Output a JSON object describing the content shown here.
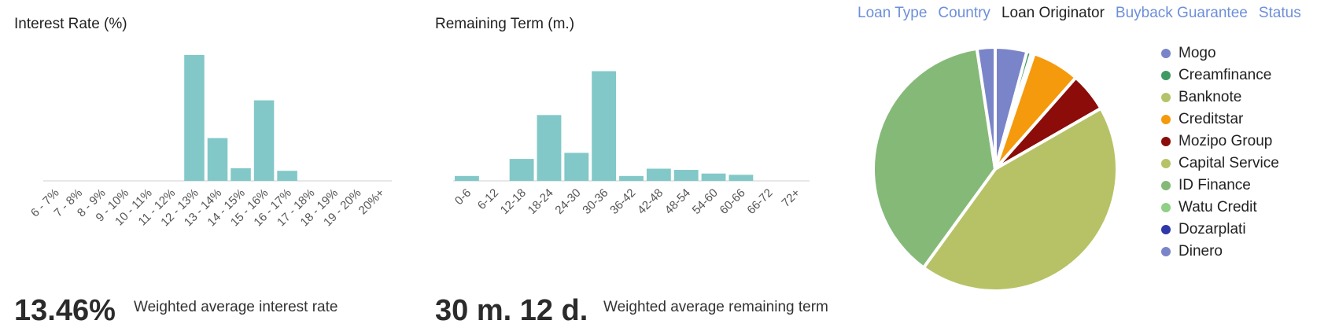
{
  "tabs": {
    "items": [
      "Loan Type",
      "Country",
      "Loan Originator",
      "Buyback Guarantee",
      "Status"
    ],
    "active_index": 2
  },
  "interest_panel": {
    "title": "Interest Rate (%)",
    "stat_value": "13.46%",
    "stat_label": "Weighted average interest rate"
  },
  "term_panel": {
    "title": "Remaining Term (m.)",
    "stat_value": "30 m. 12 d.",
    "stat_label": "Weighted average remaining term"
  },
  "chart_data": [
    {
      "type": "bar",
      "title": "Interest Rate (%)",
      "categories": [
        "6 - 7%",
        "7 - 8%",
        "8 - 9%",
        "9 - 10%",
        "10 - 11%",
        "11 - 12%",
        "12 - 13%",
        "13 - 14%",
        "14 - 15%",
        "15 - 16%",
        "16 - 17%",
        "17 - 18%",
        "18 - 19%",
        "19 - 20%",
        "20%+"
      ],
      "values": [
        0,
        0,
        0,
        0,
        0,
        0,
        100,
        34,
        10,
        64,
        8,
        0,
        0,
        0,
        0
      ],
      "color": "#82c8c8",
      "ylim": [
        0,
        100
      ],
      "grid": false
    },
    {
      "type": "bar",
      "title": "Remaining Term (m.)",
      "categories": [
        "0-6",
        "6-12",
        "12-18",
        "18-24",
        "24-30",
        "30-36",
        "36-42",
        "42-48",
        "48-54",
        "54-60",
        "60-66",
        "66-72",
        "72+"
      ],
      "values": [
        4,
        0,
        18,
        54,
        23,
        90,
        4,
        10,
        9,
        6,
        5,
        0,
        0
      ],
      "color": "#82c8c8",
      "ylim": [
        0,
        100
      ],
      "grid": false
    },
    {
      "type": "pie",
      "legend_placement": "right",
      "slices": [
        {
          "name": "Mogo",
          "value": 4.2,
          "color": "#7a84c9"
        },
        {
          "name": "Creamfinance",
          "value": 0.6,
          "color": "#3e9a63"
        },
        {
          "name": "Banknote",
          "value": 0.4,
          "color": "#b6c26a"
        },
        {
          "name": "Creditstar",
          "value": 6.3,
          "color": "#f59a0c"
        },
        {
          "name": "Mozipo Group",
          "value": 5.2,
          "color": "#8b0c08"
        },
        {
          "name": "Capital Service",
          "value": 43.3,
          "color": "#b7c266"
        },
        {
          "name": "ID Finance",
          "value": 37.6,
          "color": "#85b978"
        },
        {
          "name": "Watu Credit",
          "value": 0,
          "color": "#8fcf86"
        },
        {
          "name": "Dozarplati",
          "value": 0,
          "color": "#2f38a8"
        },
        {
          "name": "Dinero",
          "value": 2.4,
          "color": "#7a84c9"
        }
      ]
    }
  ]
}
